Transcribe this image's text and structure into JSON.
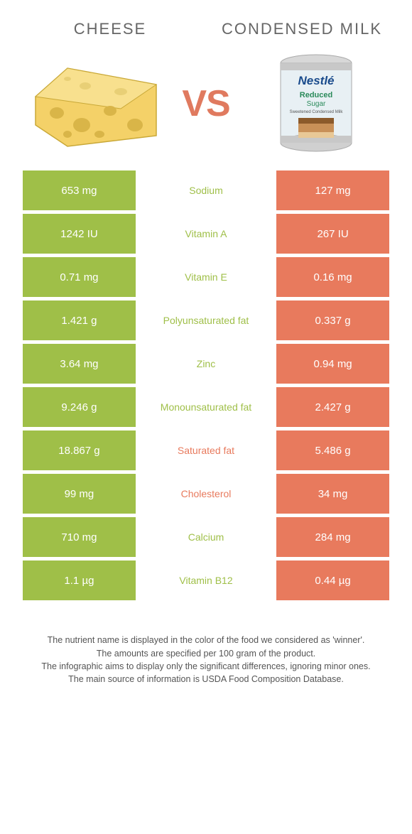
{
  "header": {
    "left_title": "CHEESE",
    "right_title": "CONDENSED MILK",
    "vs_label": "VS"
  },
  "colors": {
    "left_cell": "#9fbf48",
    "right_cell": "#e87a5d",
    "nutrient_left_winner": "#9fbf48",
    "nutrient_right_winner": "#e87a5d",
    "background": "#ffffff"
  },
  "rows": [
    {
      "left": "653 mg",
      "nutrient": "Sodium",
      "right": "127 mg",
      "winner": "left"
    },
    {
      "left": "1242 IU",
      "nutrient": "Vitamin A",
      "right": "267 IU",
      "winner": "left"
    },
    {
      "left": "0.71 mg",
      "nutrient": "Vitamin E",
      "right": "0.16 mg",
      "winner": "left"
    },
    {
      "left": "1.421 g",
      "nutrient": "Polyunsaturated fat",
      "right": "0.337 g",
      "winner": "left"
    },
    {
      "left": "3.64 mg",
      "nutrient": "Zinc",
      "right": "0.94 mg",
      "winner": "left"
    },
    {
      "left": "9.246 g",
      "nutrient": "Monounsaturated fat",
      "right": "2.427 g",
      "winner": "left"
    },
    {
      "left": "18.867 g",
      "nutrient": "Saturated fat",
      "right": "5.486 g",
      "winner": "right"
    },
    {
      "left": "99 mg",
      "nutrient": "Cholesterol",
      "right": "34 mg",
      "winner": "right"
    },
    {
      "left": "710 mg",
      "nutrient": "Calcium",
      "right": "284 mg",
      "winner": "left"
    },
    {
      "left": "1.1 µg",
      "nutrient": "Vitamin B12",
      "right": "0.44 µg",
      "winner": "left"
    }
  ],
  "footnotes": [
    "The nutrient name is displayed in the color of the food we considered as 'winner'.",
    "The amounts are specified per 100 gram of the product.",
    "The infographic aims to display only the significant differences, ignoring minor ones.",
    "The main source of information is USDA Food Composition Database."
  ]
}
